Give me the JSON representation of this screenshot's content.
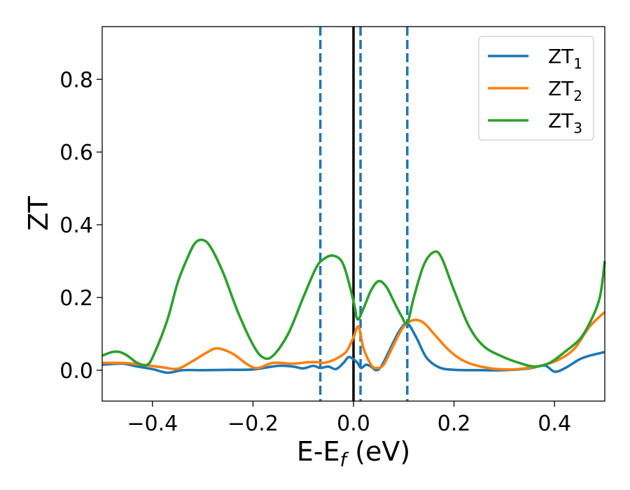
{
  "chart_data": {
    "type": "line",
    "xlabel_main": "E-E",
    "xlabel_sub": "f",
    "xlabel_unit": " (eV)",
    "ylabel": "ZT",
    "xlim": [
      -0.5,
      0.5
    ],
    "ylim": [
      -0.085,
      0.945
    ],
    "x_ticks": [
      -0.4,
      -0.2,
      0.0,
      0.2,
      0.4
    ],
    "x_tick_labels": [
      "−0.4",
      "−0.2",
      "0.0",
      "0.2",
      "0.4"
    ],
    "y_ticks": [
      0.0,
      0.2,
      0.4,
      0.6,
      0.8
    ],
    "y_tick_labels": [
      "0.0",
      "0.2",
      "0.4",
      "0.6",
      "0.8"
    ],
    "grid": false,
    "legend_position": "top-right",
    "vertical_lines": [
      {
        "x": -0.066,
        "style": "dashed",
        "color": "#1f77b4"
      },
      {
        "x": 0.0,
        "style": "solid",
        "color": "#000000"
      },
      {
        "x": 0.014,
        "style": "dashed",
        "color": "#1f77b4"
      },
      {
        "x": 0.107,
        "style": "dashed",
        "color": "#1f77b4"
      }
    ],
    "series": [
      {
        "name": "ZT",
        "sub": "1",
        "color": "#1f77b4",
        "points": [
          [
            -0.5,
            0.015
          ],
          [
            -0.46,
            0.018
          ],
          [
            -0.43,
            0.01
          ],
          [
            -0.4,
            0.003
          ],
          [
            -0.37,
            -0.007
          ],
          [
            -0.34,
            0.0
          ],
          [
            -0.3,
            0.0
          ],
          [
            -0.25,
            0.001
          ],
          [
            -0.2,
            0.002
          ],
          [
            -0.15,
            0.012
          ],
          [
            -0.12,
            0.01
          ],
          [
            -0.1,
            0.005
          ],
          [
            -0.08,
            0.012
          ],
          [
            -0.066,
            0.006
          ],
          [
            -0.05,
            0.01
          ],
          [
            -0.035,
            0.003
          ],
          [
            -0.02,
            0.02
          ],
          [
            -0.01,
            0.036
          ],
          [
            0.0,
            0.03
          ],
          [
            0.008,
            0.02
          ],
          [
            0.015,
            0.006
          ],
          [
            0.025,
            0.015
          ],
          [
            0.035,
            0.01
          ],
          [
            0.045,
            0.0
          ],
          [
            0.055,
            0.01
          ],
          [
            0.07,
            0.05
          ],
          [
            0.09,
            0.105
          ],
          [
            0.107,
            0.128
          ],
          [
            0.125,
            0.09
          ],
          [
            0.145,
            0.035
          ],
          [
            0.17,
            0.008
          ],
          [
            0.2,
            0.001
          ],
          [
            0.25,
            0.0
          ],
          [
            0.3,
            0.0
          ],
          [
            0.35,
            0.005
          ],
          [
            0.38,
            0.013
          ],
          [
            0.4,
            -0.004
          ],
          [
            0.42,
            0.005
          ],
          [
            0.45,
            0.03
          ],
          [
            0.47,
            0.04
          ],
          [
            0.5,
            0.05
          ]
        ]
      },
      {
        "name": "ZT",
        "sub": "2",
        "color": "#ff7f0e",
        "points": [
          [
            -0.5,
            0.02
          ],
          [
            -0.46,
            0.02
          ],
          [
            -0.42,
            0.015
          ],
          [
            -0.38,
            0.008
          ],
          [
            -0.35,
            0.004
          ],
          [
            -0.32,
            0.025
          ],
          [
            -0.29,
            0.05
          ],
          [
            -0.27,
            0.06
          ],
          [
            -0.24,
            0.045
          ],
          [
            -0.21,
            0.015
          ],
          [
            -0.19,
            0.006
          ],
          [
            -0.16,
            0.02
          ],
          [
            -0.12,
            0.018
          ],
          [
            -0.09,
            0.022
          ],
          [
            -0.07,
            0.022
          ],
          [
            -0.06,
            0.02
          ],
          [
            -0.045,
            0.025
          ],
          [
            -0.03,
            0.035
          ],
          [
            -0.015,
            0.05
          ],
          [
            -0.005,
            0.075
          ],
          [
            0.0,
            0.09
          ],
          [
            0.01,
            0.12
          ],
          [
            0.02,
            0.06
          ],
          [
            0.035,
            0.015
          ],
          [
            0.045,
            0.006
          ],
          [
            0.06,
            0.015
          ],
          [
            0.08,
            0.07
          ],
          [
            0.1,
            0.12
          ],
          [
            0.12,
            0.138
          ],
          [
            0.14,
            0.13
          ],
          [
            0.16,
            0.1
          ],
          [
            0.19,
            0.055
          ],
          [
            0.22,
            0.025
          ],
          [
            0.26,
            0.008
          ],
          [
            0.3,
            0.002
          ],
          [
            0.34,
            0.005
          ],
          [
            0.38,
            0.015
          ],
          [
            0.41,
            0.03
          ],
          [
            0.44,
            0.06
          ],
          [
            0.47,
            0.12
          ],
          [
            0.5,
            0.16
          ]
        ]
      },
      {
        "name": "ZT",
        "sub": "3",
        "color": "#2ca02c",
        "points": [
          [
            -0.5,
            0.04
          ],
          [
            -0.48,
            0.05
          ],
          [
            -0.465,
            0.05
          ],
          [
            -0.45,
            0.04
          ],
          [
            -0.43,
            0.02
          ],
          [
            -0.41,
            0.015
          ],
          [
            -0.395,
            0.05
          ],
          [
            -0.37,
            0.14
          ],
          [
            -0.35,
            0.24
          ],
          [
            -0.33,
            0.31
          ],
          [
            -0.315,
            0.35
          ],
          [
            -0.3,
            0.358
          ],
          [
            -0.285,
            0.34
          ],
          [
            -0.26,
            0.27
          ],
          [
            -0.23,
            0.16
          ],
          [
            -0.2,
            0.07
          ],
          [
            -0.18,
            0.035
          ],
          [
            -0.16,
            0.04
          ],
          [
            -0.13,
            0.1
          ],
          [
            -0.1,
            0.2
          ],
          [
            -0.075,
            0.28
          ],
          [
            -0.06,
            0.305
          ],
          [
            -0.04,
            0.315
          ],
          [
            -0.02,
            0.29
          ],
          [
            0.0,
            0.19
          ],
          [
            0.008,
            0.14
          ],
          [
            0.02,
            0.17
          ],
          [
            0.035,
            0.22
          ],
          [
            0.05,
            0.245
          ],
          [
            0.065,
            0.23
          ],
          [
            0.08,
            0.19
          ],
          [
            0.095,
            0.15
          ],
          [
            0.107,
            0.13
          ],
          [
            0.12,
            0.2
          ],
          [
            0.14,
            0.29
          ],
          [
            0.16,
            0.325
          ],
          [
            0.175,
            0.31
          ],
          [
            0.2,
            0.22
          ],
          [
            0.23,
            0.12
          ],
          [
            0.26,
            0.065
          ],
          [
            0.3,
            0.035
          ],
          [
            0.33,
            0.02
          ],
          [
            0.36,
            0.01
          ],
          [
            0.39,
            0.02
          ],
          [
            0.42,
            0.05
          ],
          [
            0.45,
            0.085
          ],
          [
            0.47,
            0.13
          ],
          [
            0.49,
            0.2
          ],
          [
            0.5,
            0.3
          ]
        ]
      }
    ]
  }
}
